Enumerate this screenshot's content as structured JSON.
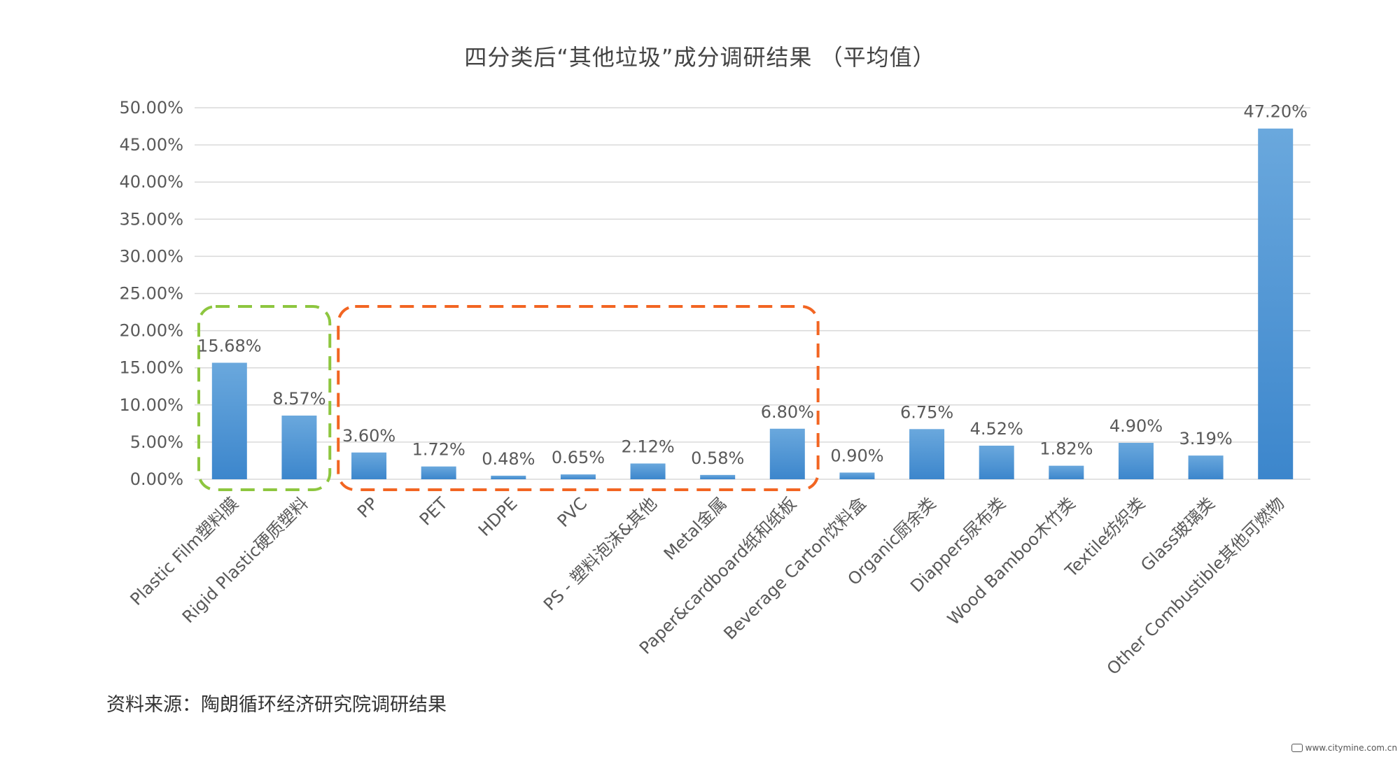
{
  "chart_data": {
    "type": "bar",
    "title": "四分类后“其他垃圾”成分调研结果 （平均值）",
    "xlabel": "",
    "ylabel": "",
    "ylim": [
      0,
      50
    ],
    "yticks": [
      "0.00%",
      "5.00%",
      "10.00%",
      "15.00%",
      "20.00%",
      "25.00%",
      "30.00%",
      "35.00%",
      "40.00%",
      "45.00%",
      "50.00%"
    ],
    "grid": true,
    "categories": [
      "Plastic Film塑料膜",
      "Rigid Plastic硬质塑料",
      "PP",
      "PET",
      "HDPE",
      "PVC",
      "PS - 塑料泡沫&其他",
      "Metal金属",
      "Paper&cardboard纸和纸板",
      "Beverage Carton饮料盒",
      "Organic厨余类",
      "Diappers尿布类",
      "Wood Bamboo木竹类",
      "Textile纺织类",
      "Glass玻璃类",
      "Other Combustible其他可燃物"
    ],
    "values": [
      15.68,
      8.57,
      3.6,
      1.72,
      0.48,
      0.65,
      2.12,
      0.58,
      6.8,
      0.9,
      6.75,
      4.52,
      1.82,
      4.9,
      3.19,
      47.2
    ],
    "data_labels": [
      "15.68%",
      "8.57%",
      "3.60%",
      "1.72%",
      "0.48%",
      "0.65%",
      "2.12%",
      "0.58%",
      "6.80%",
      "0.90%",
      "6.75%",
      "4.52%",
      "1.82%",
      "4.90%",
      "3.19%",
      "47.20%"
    ],
    "highlight_groups": [
      {
        "color": "#8dc63f",
        "from_index": 0,
        "to_index": 1
      },
      {
        "color": "#f26522",
        "from_index": 2,
        "to_index": 8
      }
    ],
    "bar_color_top": "#6aa8dd",
    "bar_color_bottom": "#3c86cc"
  },
  "source": "资料来源：陶朗循环经济研究院调研结果",
  "watermark": {
    "icon": "citymine-logo-icon",
    "text": "www.citymine.com.cn"
  }
}
